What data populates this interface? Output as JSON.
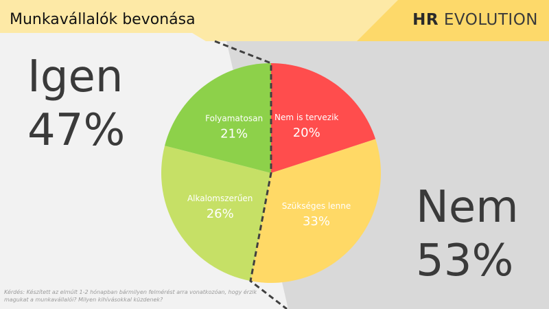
{
  "header": {
    "title": "Munkavállalók bevonása",
    "brand_bold": "HR",
    "brand_rest": " EVOLUTION"
  },
  "groups": {
    "yes": {
      "label": "Igen",
      "value": "47%"
    },
    "no": {
      "label": "Nem",
      "value": "53%"
    }
  },
  "footnote": "Kérdés: Készített az elmúlt 1-2 hónapban bármilyen felmérést arra vonatkozóan, hogy érzik magukat a munkavállalói? Milyen kihívásokkal küzdenek?",
  "colors": {
    "header_band": "#fde9a6",
    "header_accent": "#fdd96a",
    "left_bg": "#f2f2f2",
    "right_bg": "#d9d9d9",
    "divider": "#404040"
  },
  "chart_data": {
    "type": "pie",
    "start_angle_deg": 0,
    "direction": "clockwise",
    "slices": [
      {
        "label": "Nem is tervezik",
        "value": 20,
        "display": "20%",
        "color": "#ff4d4d",
        "group": "Nem"
      },
      {
        "label": "Szükséges lenne",
        "value": 33,
        "display": "33%",
        "color": "#ffd966",
        "group": "Nem"
      },
      {
        "label": "Alkalomszerűen",
        "value": 26,
        "display": "26%",
        "color": "#c6e066",
        "group": "Igen"
      },
      {
        "label": "Folyamatosan",
        "value": 21,
        "display": "21%",
        "color": "#8dd14a",
        "group": "Igen"
      }
    ]
  }
}
